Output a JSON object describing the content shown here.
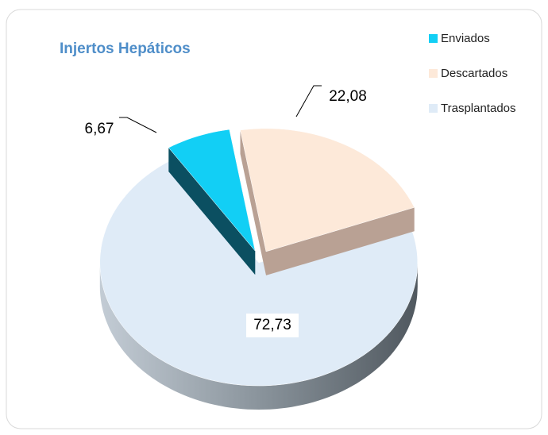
{
  "chart_data": {
    "type": "pie",
    "title": "Injertos Hepáticos",
    "categories": [
      "Enviados",
      "Descartados",
      "Trasplantados"
    ],
    "values": [
      6.67,
      22.08,
      72.73
    ],
    "value_labels": [
      "6,67",
      "22,08",
      "72,73"
    ],
    "colors": [
      "#12cff5",
      "#fde9d9",
      "#dfebf7"
    ],
    "legend": "right"
  }
}
